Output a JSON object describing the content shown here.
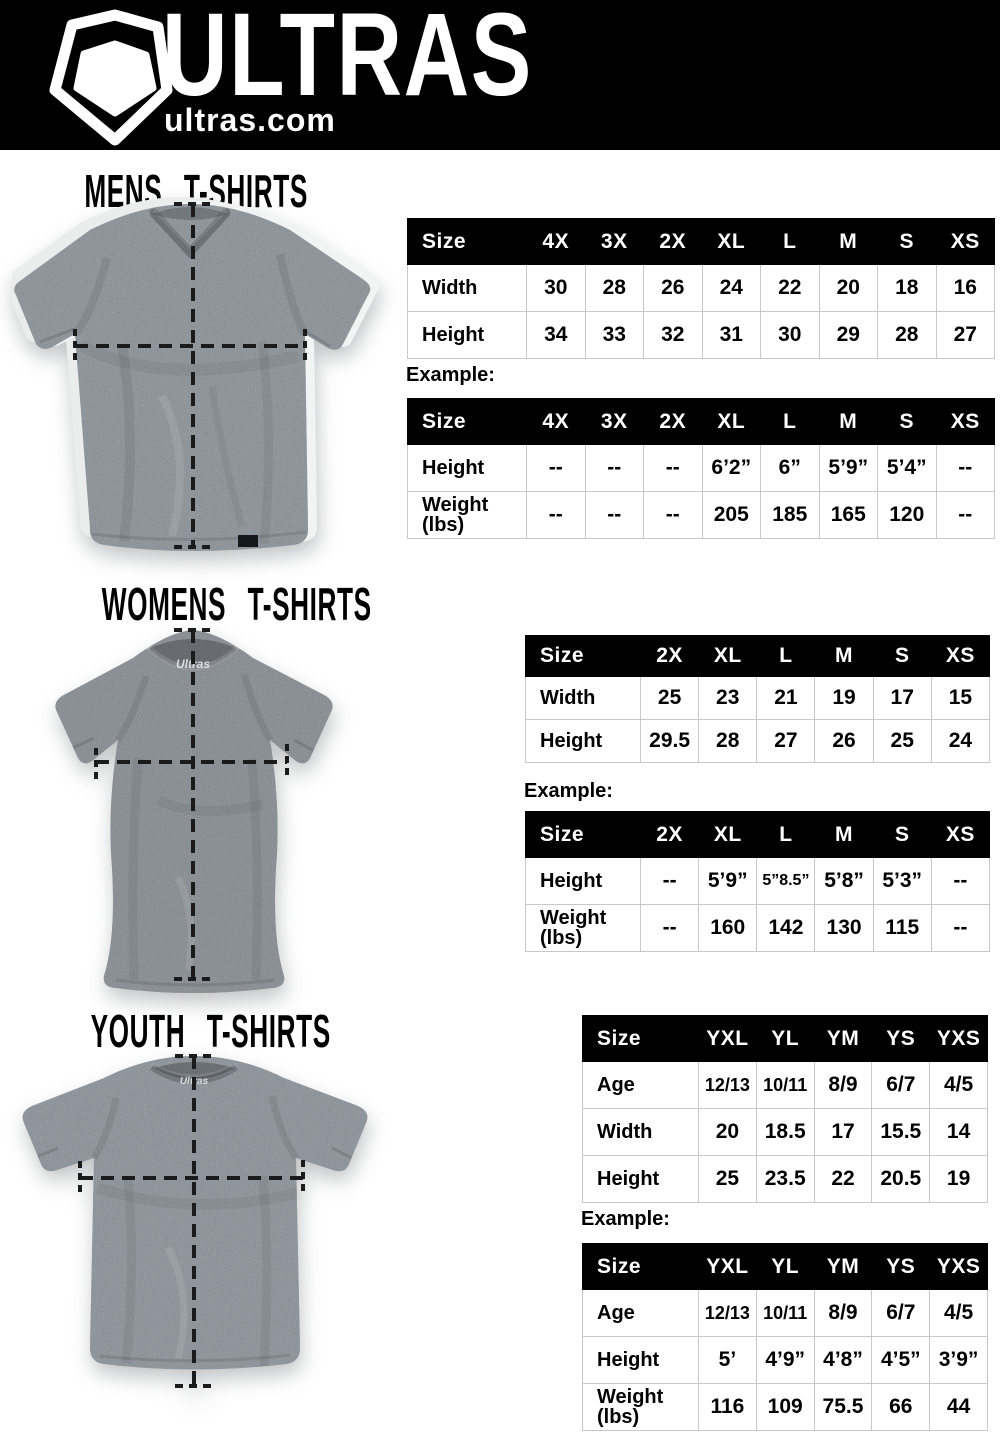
{
  "header": {
    "brand": "ULTRAS",
    "domain": "ultras.com",
    "logo_icon": "pentagon-shield-icon"
  },
  "collar_label": "Ultras",
  "colors": {
    "header_bg": "#000000",
    "header_fg": "#ffffff",
    "table_header_bg": "#000000",
    "table_header_fg": "#ffffff",
    "table_border": "#c8c8c8",
    "guide_line": "#1b1b1b",
    "shirt_mens": "#99a1a8",
    "shirt_womens": "#969a9f",
    "shirt_youth": "#9aa1a9"
  },
  "sections": [
    {
      "key": "mens",
      "title": "MENS T-SHIRTS",
      "example_label": "Example:",
      "size_table": {
        "header": [
          "Size",
          "4X",
          "3X",
          "2X",
          "XL",
          "L",
          "M",
          "S",
          "XS"
        ],
        "rows": [
          {
            "label": "Width",
            "values": [
              "30",
              "28",
              "26",
              "24",
              "22",
              "20",
              "18",
              "16"
            ]
          },
          {
            "label": "Height",
            "values": [
              "34",
              "33",
              "32",
              "31",
              "30",
              "29",
              "28",
              "27"
            ]
          }
        ]
      },
      "example_table": {
        "header": [
          "Size",
          "4X",
          "3X",
          "2X",
          "XL",
          "L",
          "M",
          "S",
          "XS"
        ],
        "rows": [
          {
            "label": "Height",
            "values": [
              "--",
              "--",
              "--",
              "6’2”",
              "6”",
              "5’9”",
              "5’4”",
              "--"
            ]
          },
          {
            "label": "Weight (lbs)",
            "values": [
              "--",
              "--",
              "--",
              "205",
              "185",
              "165",
              "120",
              "--"
            ]
          }
        ]
      }
    },
    {
      "key": "womens",
      "title": "WOMENS T-SHIRTS",
      "example_label": "Example:",
      "size_table": {
        "header": [
          "Size",
          "2X",
          "XL",
          "L",
          "M",
          "S",
          "XS"
        ],
        "rows": [
          {
            "label": "Width",
            "values": [
              "25",
              "23",
              "21",
              "19",
              "17",
              "15"
            ]
          },
          {
            "label": "Height",
            "values": [
              "29.5",
              "28",
              "27",
              "26",
              "25",
              "24"
            ]
          }
        ]
      },
      "example_table": {
        "header": [
          "Size",
          "2X",
          "XL",
          "L",
          "M",
          "S",
          "XS"
        ],
        "rows": [
          {
            "label": "Height",
            "values": [
              "--",
              "5’9”",
              "5”8.5”",
              "5’8”",
              "5’3”",
              "--"
            ]
          },
          {
            "label": "Weight (lbs)",
            "values": [
              "--",
              "160",
              "142",
              "130",
              "115",
              "--"
            ]
          }
        ]
      }
    },
    {
      "key": "youth",
      "title": "YOUTH T-SHIRTS",
      "example_label": "Example:",
      "size_table": {
        "header": [
          "Size",
          "YXL",
          "YL",
          "YM",
          "YS",
          "YXS"
        ],
        "rows": [
          {
            "label": "Age",
            "values": [
              "12/13",
              "10/11",
              "8/9",
              "6/7",
              "4/5"
            ]
          },
          {
            "label": "Width",
            "values": [
              "20",
              "18.5",
              "17",
              "15.5",
              "14"
            ]
          },
          {
            "label": "Height",
            "values": [
              "25",
              "23.5",
              "22",
              "20.5",
              "19"
            ]
          }
        ]
      },
      "example_table": {
        "header": [
          "Size",
          "YXL",
          "YL",
          "YM",
          "YS",
          "YXS"
        ],
        "rows": [
          {
            "label": "Age",
            "values": [
              "12/13",
              "10/11",
              "8/9",
              "6/7",
              "4/5"
            ]
          },
          {
            "label": "Height",
            "values": [
              "5’",
              "4’9”",
              "4’8”",
              "4’5”",
              "3’9”"
            ]
          },
          {
            "label": "Weight (lbs)",
            "values": [
              "116",
              "109",
              "75.5",
              "66",
              "44"
            ]
          }
        ]
      }
    }
  ]
}
